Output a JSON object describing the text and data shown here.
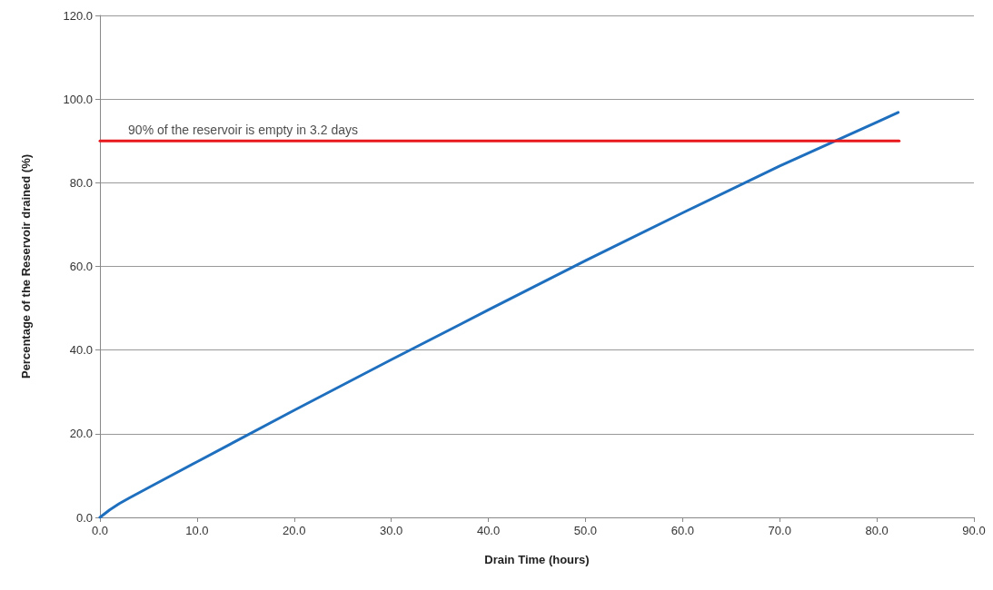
{
  "chart_data": {
    "type": "line",
    "xlabel": "Drain Time (hours)",
    "ylabel": "Percentage of the Reservoir drained (%)",
    "xlim": [
      0,
      90
    ],
    "ylim": [
      0,
      120
    ],
    "xticks": [
      {
        "value": 0,
        "label": "0.0"
      },
      {
        "value": 10,
        "label": "10.0"
      },
      {
        "value": 20,
        "label": "20.0"
      },
      {
        "value": 30,
        "label": "30.0"
      },
      {
        "value": 40,
        "label": "40.0"
      },
      {
        "value": 50,
        "label": "50.0"
      },
      {
        "value": 60,
        "label": "60.0"
      },
      {
        "value": 70,
        "label": "70.0"
      },
      {
        "value": 80,
        "label": "80.0"
      },
      {
        "value": 90,
        "label": "90.0"
      }
    ],
    "yticks": [
      {
        "value": 0,
        "label": "0.0"
      },
      {
        "value": 20,
        "label": "20.0"
      },
      {
        "value": 40,
        "label": "40.0"
      },
      {
        "value": 60,
        "label": "60.0"
      },
      {
        "value": 80,
        "label": "80.0"
      },
      {
        "value": 100,
        "label": "100.0"
      },
      {
        "value": 120,
        "label": "120.0"
      }
    ],
    "grid": "y",
    "marker": "none",
    "line_style": "solid",
    "series": [
      {
        "color": "#1f6fbf",
        "x": [
          0,
          1,
          2,
          3,
          5,
          10,
          20,
          30,
          40,
          50,
          60,
          70,
          80,
          82.2
        ],
        "values": [
          0,
          1.8,
          3.3,
          4.6,
          7.1,
          13.3,
          25.6,
          37.7,
          49.6,
          61.4,
          72.8,
          84.0,
          94.5,
          96.8
        ]
      },
      {
        "color": "#e8191c",
        "x": [
          0,
          82.3
        ],
        "values": [
          90,
          90
        ]
      }
    ],
    "annotations": [
      {
        "text": "90% of the reservoir is empty in 3.2 days",
        "x": 3,
        "y": 90
      }
    ]
  }
}
